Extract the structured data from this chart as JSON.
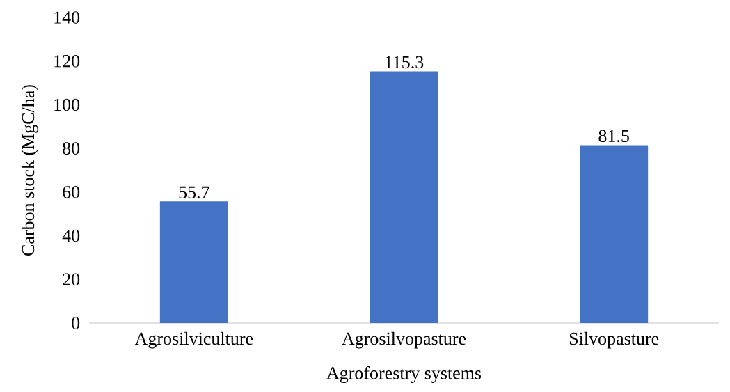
{
  "chart_data": {
    "type": "bar",
    "xlabel": "Agroforestry systems",
    "ylabel": "Carbon stock (MgC/ha)",
    "categories": [
      "Agrosilviculture",
      "Agrosilvopasture",
      "Silvopasture"
    ],
    "values": [
      55.7,
      115.3,
      81.5
    ],
    "color": "#4472c4",
    "ylim": [
      0,
      140
    ],
    "yticks": [
      0,
      20,
      40,
      60,
      80,
      100,
      120,
      140
    ],
    "data_labels": true
  }
}
